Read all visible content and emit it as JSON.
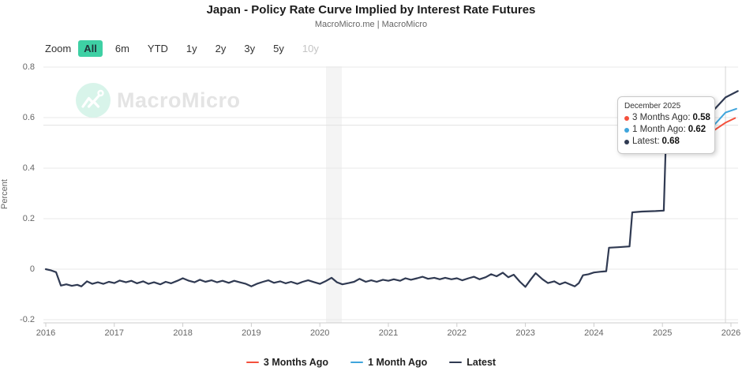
{
  "header": {
    "title": "Japan - Policy Rate Curve Implied by Interest Rate Futures",
    "subtitle": "MacroMicro.me | MacroMicro"
  },
  "toolbar": {
    "zoom_label": "Zoom",
    "ranges": [
      {
        "label": "All",
        "active": true,
        "enabled": true
      },
      {
        "label": "6m",
        "active": false,
        "enabled": true
      },
      {
        "label": "YTD",
        "active": false,
        "enabled": true
      },
      {
        "label": "1y",
        "active": false,
        "enabled": true
      },
      {
        "label": "2y",
        "active": false,
        "enabled": true
      },
      {
        "label": "3y",
        "active": false,
        "enabled": true
      },
      {
        "label": "5y",
        "active": false,
        "enabled": true
      },
      {
        "label": "10y",
        "active": false,
        "enabled": false
      }
    ],
    "active_color": "#3ed0a4"
  },
  "watermark": {
    "brand": "MacroMicro"
  },
  "chart_data": {
    "type": "line",
    "title": "Japan - Policy Rate Curve Implied by Interest Rate Futures",
    "xlabel": "",
    "ylabel": "Percent",
    "ylim": [
      -0.21,
      0.8
    ],
    "xlim": [
      2016,
      2026.1
    ],
    "grid": "horizontal",
    "legend_position": "bottom",
    "yticks": [
      0.8,
      0.6,
      0.4,
      0.2,
      0,
      -0.2
    ],
    "ytick_labels": [
      "0.8",
      "0.6",
      "0.4",
      "0.2",
      "0",
      "-0.2"
    ],
    "xticks": [
      2016,
      2017,
      2018,
      2019,
      2020,
      2021,
      2022,
      2023,
      2024,
      2025,
      2026
    ],
    "xtick_labels": [
      "2016",
      "2017",
      "2018",
      "2019",
      "2020",
      "2021",
      "2022",
      "2023",
      "2024",
      "2025",
      "2026"
    ],
    "plot_band": {
      "from": 2020.09,
      "to": 2020.32,
      "color": "#f4f4f4"
    },
    "aux_hline": 0.57,
    "crosshair_x": 2025.92,
    "series": [
      {
        "name": "3 Months Ago",
        "color": "#f4503c",
        "points": [
          [
            2025.05,
            0.5
          ],
          [
            2025.3,
            0.5
          ],
          [
            2025.5,
            0.512
          ],
          [
            2025.68,
            0.535
          ],
          [
            2025.8,
            0.558
          ],
          [
            2025.92,
            0.58
          ],
          [
            2026.06,
            0.598
          ]
        ]
      },
      {
        "name": "1 Month Ago",
        "color": "#3fa5dc",
        "points": [
          [
            2025.05,
            0.5
          ],
          [
            2025.3,
            0.505
          ],
          [
            2025.5,
            0.52
          ],
          [
            2025.65,
            0.545
          ],
          [
            2025.78,
            0.578
          ],
          [
            2025.92,
            0.62
          ],
          [
            2026.08,
            0.635
          ]
        ]
      },
      {
        "name": "Latest",
        "color": "#303a52",
        "points": [
          [
            2016.0,
            0.0
          ],
          [
            2016.08,
            -0.005
          ],
          [
            2016.15,
            -0.012
          ],
          [
            2016.22,
            -0.065
          ],
          [
            2016.3,
            -0.06
          ],
          [
            2016.38,
            -0.066
          ],
          [
            2016.46,
            -0.062
          ],
          [
            2016.52,
            -0.068
          ],
          [
            2016.6,
            -0.048
          ],
          [
            2016.68,
            -0.058
          ],
          [
            2016.76,
            -0.052
          ],
          [
            2016.84,
            -0.058
          ],
          [
            2016.92,
            -0.05
          ],
          [
            2017.0,
            -0.055
          ],
          [
            2017.08,
            -0.045
          ],
          [
            2017.17,
            -0.052
          ],
          [
            2017.25,
            -0.046
          ],
          [
            2017.33,
            -0.056
          ],
          [
            2017.42,
            -0.048
          ],
          [
            2017.5,
            -0.058
          ],
          [
            2017.58,
            -0.052
          ],
          [
            2017.67,
            -0.06
          ],
          [
            2017.75,
            -0.05
          ],
          [
            2017.83,
            -0.056
          ],
          [
            2017.92,
            -0.046
          ],
          [
            2018.0,
            -0.036
          ],
          [
            2018.08,
            -0.045
          ],
          [
            2018.17,
            -0.052
          ],
          [
            2018.25,
            -0.042
          ],
          [
            2018.33,
            -0.05
          ],
          [
            2018.42,
            -0.044
          ],
          [
            2018.5,
            -0.052
          ],
          [
            2018.58,
            -0.046
          ],
          [
            2018.67,
            -0.054
          ],
          [
            2018.75,
            -0.046
          ],
          [
            2018.83,
            -0.052
          ],
          [
            2018.92,
            -0.058
          ],
          [
            2019.0,
            -0.068
          ],
          [
            2019.08,
            -0.058
          ],
          [
            2019.17,
            -0.05
          ],
          [
            2019.25,
            -0.044
          ],
          [
            2019.33,
            -0.054
          ],
          [
            2019.42,
            -0.048
          ],
          [
            2019.5,
            -0.056
          ],
          [
            2019.58,
            -0.05
          ],
          [
            2019.67,
            -0.058
          ],
          [
            2019.75,
            -0.05
          ],
          [
            2019.83,
            -0.044
          ],
          [
            2019.92,
            -0.052
          ],
          [
            2020.0,
            -0.058
          ],
          [
            2020.08,
            -0.048
          ],
          [
            2020.17,
            -0.034
          ],
          [
            2020.25,
            -0.052
          ],
          [
            2020.33,
            -0.06
          ],
          [
            2020.42,
            -0.055
          ],
          [
            2020.5,
            -0.05
          ],
          [
            2020.58,
            -0.038
          ],
          [
            2020.67,
            -0.05
          ],
          [
            2020.75,
            -0.044
          ],
          [
            2020.83,
            -0.05
          ],
          [
            2020.92,
            -0.042
          ],
          [
            2021.0,
            -0.046
          ],
          [
            2021.08,
            -0.04
          ],
          [
            2021.17,
            -0.046
          ],
          [
            2021.25,
            -0.036
          ],
          [
            2021.33,
            -0.042
          ],
          [
            2021.42,
            -0.036
          ],
          [
            2021.5,
            -0.03
          ],
          [
            2021.58,
            -0.038
          ],
          [
            2021.67,
            -0.034
          ],
          [
            2021.75,
            -0.04
          ],
          [
            2021.83,
            -0.034
          ],
          [
            2021.92,
            -0.04
          ],
          [
            2022.0,
            -0.036
          ],
          [
            2022.08,
            -0.044
          ],
          [
            2022.17,
            -0.036
          ],
          [
            2022.25,
            -0.03
          ],
          [
            2022.33,
            -0.04
          ],
          [
            2022.42,
            -0.032
          ],
          [
            2022.5,
            -0.02
          ],
          [
            2022.58,
            -0.028
          ],
          [
            2022.67,
            -0.014
          ],
          [
            2022.75,
            -0.032
          ],
          [
            2022.83,
            -0.022
          ],
          [
            2022.92,
            -0.05
          ],
          [
            2023.0,
            -0.07
          ],
          [
            2023.08,
            -0.04
          ],
          [
            2023.15,
            -0.016
          ],
          [
            2023.25,
            -0.04
          ],
          [
            2023.33,
            -0.055
          ],
          [
            2023.42,
            -0.048
          ],
          [
            2023.5,
            -0.06
          ],
          [
            2023.58,
            -0.052
          ],
          [
            2023.65,
            -0.06
          ],
          [
            2023.72,
            -0.068
          ],
          [
            2023.78,
            -0.055
          ],
          [
            2023.84,
            -0.024
          ],
          [
            2023.92,
            -0.02
          ],
          [
            2024.0,
            -0.013
          ],
          [
            2024.1,
            -0.01
          ],
          [
            2024.18,
            -0.008
          ],
          [
            2024.22,
            0.085
          ],
          [
            2024.35,
            0.087
          ],
          [
            2024.52,
            0.09
          ],
          [
            2024.56,
            0.225
          ],
          [
            2024.7,
            0.228
          ],
          [
            2024.9,
            0.23
          ],
          [
            2025.02,
            0.232
          ],
          [
            2025.05,
            0.5
          ],
          [
            2025.2,
            0.505
          ],
          [
            2025.4,
            0.515
          ],
          [
            2025.6,
            0.56
          ],
          [
            2025.75,
            0.63
          ],
          [
            2025.92,
            0.68
          ],
          [
            2026.1,
            0.705
          ]
        ]
      }
    ]
  },
  "tooltip": {
    "header": "December 2025",
    "rows": [
      {
        "name": "3 Months Ago",
        "value": "0.58",
        "color": "#f4503c"
      },
      {
        "name": "1 Month Ago",
        "value": "0.62",
        "color": "#3fa5dc"
      },
      {
        "name": "Latest",
        "value": "0.68",
        "color": "#303a52"
      }
    ]
  },
  "legend": {
    "items": [
      {
        "label": "3 Months Ago",
        "color": "#f4503c"
      },
      {
        "label": "1 Month Ago",
        "color": "#3fa5dc"
      },
      {
        "label": "Latest",
        "color": "#303a52"
      }
    ]
  }
}
